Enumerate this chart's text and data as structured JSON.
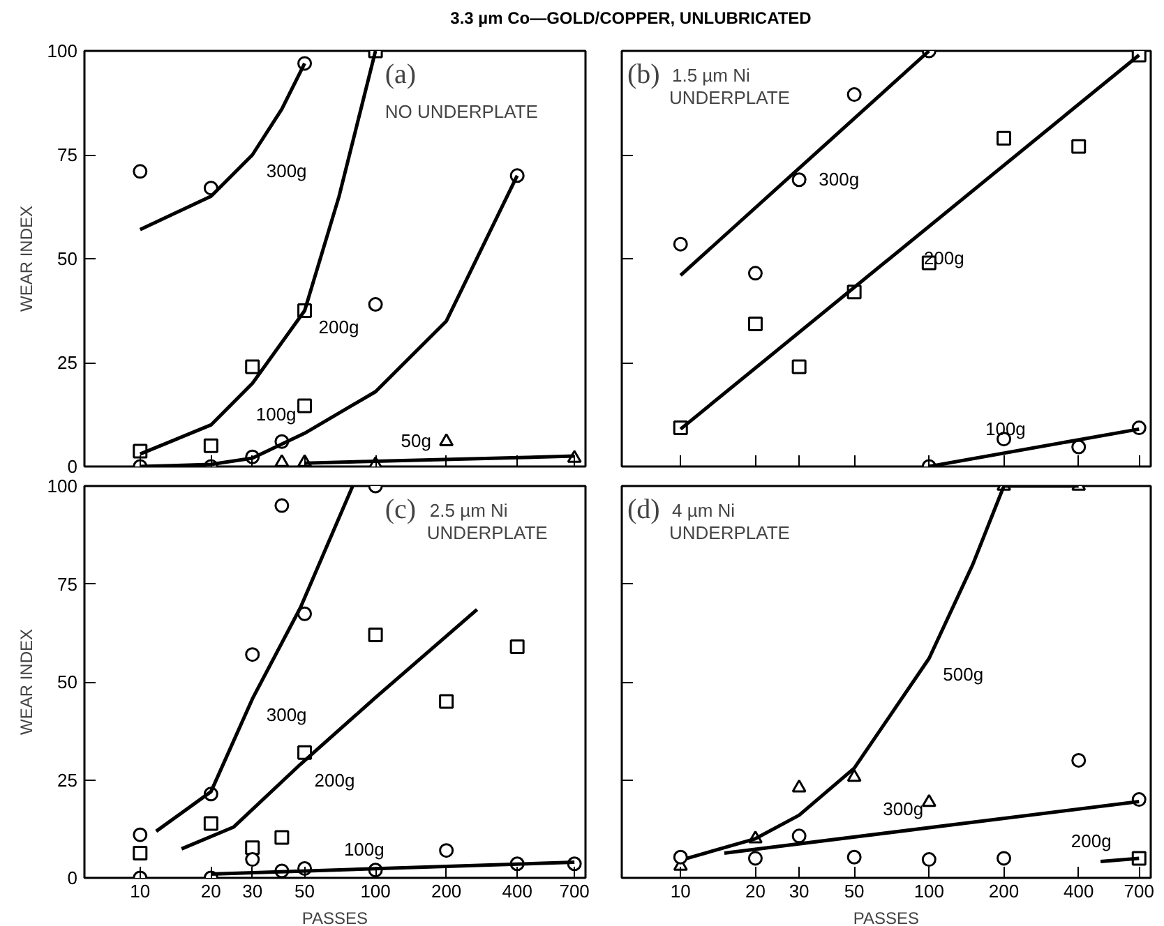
{
  "chart_data": [
    {
      "type": "scatter",
      "title": "3.3 µm Co—GOLD/COPPER, UNLUBRICATED",
      "ylabel": "WEAR INDEX",
      "annotations": [
        "(a)",
        "NO UNDERPLATE"
      ],
      "log": "x",
      "xlim": [
        5.8,
        780
      ],
      "ylim": [
        0,
        100
      ],
      "xticks": [
        10,
        20,
        30,
        50,
        100,
        200,
        400,
        700
      ],
      "yticks": [
        0,
        25,
        50,
        75,
        100
      ],
      "tick_labels": "y",
      "grid": false,
      "series": [
        {
          "type": "scatter",
          "marker": "circle",
          "color": "#000000",
          "x": [
            10,
            20,
            50
          ],
          "values": [
            71,
            67,
            97
          ]
        },
        {
          "type": "line",
          "name": "300g",
          "color": "#000000",
          "x": [
            10,
            20,
            30,
            40,
            50
          ],
          "values": [
            57,
            65,
            75,
            86,
            97
          ]
        },
        {
          "type": "scatter",
          "marker": "square",
          "color": "#000000",
          "x": [
            10,
            20,
            30,
            50,
            50,
            100
          ],
          "values": [
            3.7,
            5,
            24,
            37.5,
            14.6,
            100
          ]
        },
        {
          "type": "line",
          "name": "200g",
          "color": "#000000",
          "x": [
            10,
            20,
            30,
            50,
            70,
            100
          ],
          "values": [
            3,
            10,
            20,
            37.5,
            65,
            100
          ]
        },
        {
          "type": "scatter",
          "marker": "circle",
          "color": "#000000",
          "x": [
            10,
            20,
            30,
            40,
            100,
            400
          ],
          "values": [
            0,
            0,
            2.3,
            6,
            39,
            70
          ]
        },
        {
          "type": "line",
          "name": "100g",
          "color": "#000000",
          "x": [
            10,
            20,
            30,
            50,
            100,
            200,
            400
          ],
          "values": [
            0,
            0.5,
            2,
            8,
            18,
            35,
            70
          ]
        },
        {
          "type": "scatter",
          "marker": "triangle",
          "color": "#000000",
          "x": [
            40,
            50,
            100,
            200,
            700
          ],
          "values": [
            1,
            1,
            0.5,
            6,
            2
          ]
        },
        {
          "type": "line",
          "name": "50g",
          "color": "#000000",
          "x": [
            50,
            700
          ],
          "values": [
            0.8,
            2.5
          ]
        }
      ]
    },
    {
      "type": "scatter",
      "annotations": [
        "(b)",
        "1.5 µm Ni",
        "UNDERPLATE"
      ],
      "log": "x",
      "xlim": [
        5.8,
        780
      ],
      "ylim": [
        0,
        100
      ],
      "xticks": [
        10,
        20,
        30,
        50,
        100,
        200,
        400,
        700
      ],
      "yticks": [
        0,
        25,
        50,
        75,
        100
      ],
      "tick_labels": false,
      "grid": false,
      "series": [
        {
          "type": "scatter",
          "marker": "circle",
          "color": "#000000",
          "x": [
            10,
            20,
            30,
            50,
            100
          ],
          "values": [
            53.5,
            46.5,
            69,
            89.5,
            100
          ]
        },
        {
          "type": "line",
          "name": "300g",
          "color": "#000000",
          "x": [
            10,
            100
          ],
          "values": [
            46,
            100
          ]
        },
        {
          "type": "scatter",
          "marker": "square",
          "color": "#000000",
          "x": [
            10,
            20,
            30,
            50,
            100,
            200,
            400,
            700
          ],
          "values": [
            9.3,
            34.3,
            24,
            42,
            49,
            79,
            77,
            99
          ]
        },
        {
          "type": "line",
          "name": "200g",
          "color": "#000000",
          "x": [
            10,
            700
          ],
          "values": [
            9,
            99
          ]
        },
        {
          "type": "scatter",
          "marker": "circle",
          "color": "#000000",
          "x": [
            100,
            200,
            400,
            700
          ],
          "values": [
            0,
            6.6,
            4.7,
            9.3
          ]
        },
        {
          "type": "line",
          "name": "100g",
          "color": "#000000",
          "x": [
            100,
            700
          ],
          "values": [
            0,
            9
          ]
        }
      ]
    },
    {
      "type": "scatter",
      "ylabel": "WEAR INDEX",
      "xlabel": "PASSES",
      "annotations": [
        "(c)",
        "2.5 µm Ni",
        "UNDERPLATE"
      ],
      "log": "x",
      "xlim": [
        5.8,
        780
      ],
      "ylim": [
        0,
        100
      ],
      "xticks": [
        10,
        20,
        30,
        50,
        100,
        200,
        400,
        700
      ],
      "yticks": [
        0,
        25,
        50,
        75,
        100
      ],
      "grid": false,
      "series": [
        {
          "type": "scatter",
          "marker": "circle",
          "color": "#000000",
          "x": [
            10,
            20,
            30,
            40,
            50,
            100
          ],
          "values": [
            11,
            21.4,
            57,
            95,
            67.4,
            100
          ]
        },
        {
          "type": "line",
          "name": "300g",
          "color": "#000000",
          "x": [
            11.7,
            20,
            30,
            48,
            80
          ],
          "values": [
            11.9,
            22,
            45.7,
            69,
            100
          ]
        },
        {
          "type": "scatter",
          "marker": "square",
          "color": "#000000",
          "x": [
            10,
            20,
            30,
            40,
            50,
            100,
            200,
            400
          ],
          "values": [
            6.3,
            13.9,
            7.7,
            10.3,
            32,
            62,
            45,
            59
          ]
        },
        {
          "type": "line",
          "name": "200g",
          "color": "#000000",
          "x": [
            15,
            25,
            48,
            100,
            270
          ],
          "values": [
            7.4,
            13,
            29,
            46,
            68.5
          ]
        },
        {
          "type": "scatter",
          "marker": "circle",
          "color": "#000000",
          "x": [
            10,
            20,
            30,
            40,
            50,
            100,
            200,
            400,
            700
          ],
          "values": [
            0,
            0,
            4.7,
            1.8,
            2.4,
            2,
            7,
            3.6,
            3.6
          ]
        },
        {
          "type": "line",
          "name": "100g",
          "color": "#000000",
          "x": [
            20,
            700
          ],
          "values": [
            1,
            4
          ]
        }
      ]
    },
    {
      "type": "scatter",
      "xlabel": "PASSES",
      "annotations": [
        "(d)",
        "4 µm Ni",
        "UNDERPLATE"
      ],
      "log": "x",
      "xlim": [
        5.8,
        780
      ],
      "ylim": [
        0,
        100
      ],
      "xticks": [
        10,
        20,
        30,
        50,
        100,
        200,
        400,
        700
      ],
      "yticks": [
        0,
        25,
        50,
        75,
        100
      ],
      "tick_labels": "x",
      "grid": false,
      "series": [
        {
          "type": "scatter",
          "marker": "triangle",
          "color": "#000000",
          "x": [
            10,
            20,
            30,
            50,
            100,
            200,
            400
          ],
          "values": [
            3,
            10,
            23,
            25.7,
            19.3,
            100,
            100
          ]
        },
        {
          "type": "line",
          "name": "500g",
          "color": "#000000",
          "x": [
            10,
            20,
            30,
            50,
            100,
            150,
            200,
            400
          ],
          "values": [
            4.5,
            10,
            16,
            28,
            56,
            80,
            100,
            100
          ]
        },
        {
          "type": "scatter",
          "marker": "circle",
          "color": "#000000",
          "x": [
            10,
            20,
            30,
            50,
            100,
            200,
            400,
            700
          ],
          "values": [
            5.3,
            5,
            10.7,
            5.3,
            4.7,
            5,
            30,
            20
          ]
        },
        {
          "type": "line",
          "name": "300g",
          "color": "#000000",
          "x": [
            15,
            700
          ],
          "values": [
            6.3,
            19.5
          ]
        },
        {
          "type": "scatter",
          "marker": "square",
          "color": "#000000",
          "x": [
            700
          ],
          "values": [
            5
          ]
        },
        {
          "type": "line",
          "name": "200g",
          "color": "#000000",
          "x": [
            490,
            700
          ],
          "values": [
            4.2,
            5
          ]
        }
      ]
    }
  ]
}
